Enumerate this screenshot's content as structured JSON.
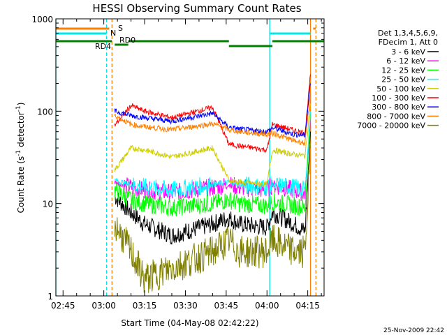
{
  "chart_data": {
    "type": "line",
    "title": "HESSI Observing Summary Count Rates",
    "xlabel": "Start Time (04-May-08 02:42:22)",
    "ylabel": "Count Rate (s⁻¹ detector⁻¹)",
    "ylabel_main": "Count Rate (s",
    "ylabel_sup1": "-1",
    "ylabel_mid": " detector",
    "ylabel_sup2": "-1",
    "ylabel_end": ")",
    "y_scale": "log",
    "ylim": [
      1,
      1000
    ],
    "xlim": [
      "02:42:22",
      "04:21"
    ],
    "x_ticks": [
      "02:45",
      "03:00",
      "03:15",
      "03:30",
      "03:45",
      "04:00",
      "04:15"
    ],
    "y_ticks": [
      "1",
      "10",
      "100",
      "1000"
    ],
    "grid": false,
    "legend_position": "right",
    "legend_header": [
      "Det 1,3,4,5,6,9,",
      "FDecim 1, Att 0"
    ],
    "timestamp": "25-Nov-2009 22:42",
    "state_flags": [
      {
        "label": "S",
        "color": "#ff8000"
      },
      {
        "label": "N",
        "color": "#00e8e8"
      },
      {
        "label": "RD4",
        "color": "#007f00"
      },
      {
        "label": "RD0",
        "color": "#007f00"
      }
    ],
    "series": [
      {
        "name": "3 - 6 keV",
        "color": "#000000",
        "x": [
          "03:04",
          "03:10",
          "03:15",
          "03:25",
          "03:40",
          "03:46",
          "03:50",
          "04:00",
          "04:02",
          "04:10",
          "04:14",
          "04:16"
        ],
        "values": [
          12,
          8,
          6,
          4.5,
          6,
          7,
          6,
          5.5,
          8,
          6,
          5,
          60
        ]
      },
      {
        "name": "6 - 12 keV",
        "color": "#ff00ff",
        "x": [
          "03:04",
          "03:10",
          "03:15",
          "03:25",
          "03:40",
          "03:46",
          "03:50",
          "04:00",
          "04:02",
          "04:10",
          "04:14",
          "04:16"
        ],
        "values": [
          17,
          15,
          14,
          13,
          15,
          16,
          15,
          14,
          16,
          14,
          13,
          80
        ]
      },
      {
        "name": "12 - 25 keV",
        "color": "#00ff00",
        "x": [
          "03:04",
          "03:10",
          "03:15",
          "03:25",
          "03:40",
          "03:46",
          "03:50",
          "04:00",
          "04:02",
          "04:10",
          "04:14",
          "04:16"
        ],
        "values": [
          14,
          11,
          10,
          9,
          10,
          11,
          10,
          9.5,
          10.5,
          9.5,
          9,
          90
        ]
      },
      {
        "name": "25 - 50 keV",
        "color": "#00ffff",
        "x": [
          "03:04",
          "03:10",
          "03:15",
          "03:25",
          "03:40",
          "03:46",
          "03:50",
          "04:00",
          "04:02",
          "04:10",
          "04:14",
          "04:16"
        ],
        "values": [
          18,
          16,
          15,
          14,
          16,
          17,
          16,
          15,
          16,
          15,
          14,
          100
        ]
      },
      {
        "name": "50 - 100 keV",
        "color": "#cccc00",
        "x": [
          "03:04",
          "03:10",
          "03:15",
          "03:25",
          "03:40",
          "03:46",
          "03:50",
          "04:00",
          "04:02",
          "04:10",
          "04:14",
          "04:16"
        ],
        "values": [
          23,
          40,
          38,
          32,
          40,
          18,
          17,
          16,
          38,
          34,
          33,
          120
        ]
      },
      {
        "name": "100 - 300 keV",
        "color": "#ff0000",
        "x": [
          "03:04",
          "03:10",
          "03:15",
          "03:25",
          "03:40",
          "03:46",
          "03:50",
          "04:00",
          "04:02",
          "04:10",
          "04:14",
          "04:16"
        ],
        "values": [
          70,
          115,
          100,
          85,
          110,
          44,
          42,
          38,
          72,
          62,
          58,
          250
        ]
      },
      {
        "name": "300 - 800 keV",
        "color": "#0000ff",
        "x": [
          "03:04",
          "03:10",
          "03:15",
          "03:25",
          "03:40",
          "03:46",
          "03:50",
          "04:00",
          "04:02",
          "04:10",
          "04:14",
          "04:16"
        ],
        "values": [
          100,
          90,
          85,
          78,
          95,
          67,
          64,
          60,
          66,
          56,
          55,
          200
        ]
      },
      {
        "name": "800 - 7000 keV",
        "color": "#ff8000",
        "x": [
          "03:04",
          "03:10",
          "03:15",
          "03:25",
          "03:40",
          "03:46",
          "03:50",
          "04:00",
          "04:02",
          "04:10",
          "04:14",
          "04:16"
        ],
        "values": [
          90,
          72,
          68,
          63,
          73,
          63,
          60,
          56,
          58,
          48,
          45,
          150
        ]
      },
      {
        "name": "7000 - 20000 keV",
        "color": "#7f7f00",
        "x": [
          "03:04",
          "03:10",
          "03:15",
          "03:25",
          "03:40",
          "03:46",
          "03:50",
          "04:00",
          "04:02",
          "04:10",
          "04:14",
          "04:16"
        ],
        "values": [
          6,
          3,
          1.5,
          2,
          3,
          4,
          3,
          3,
          4,
          3,
          3,
          40
        ]
      }
    ]
  }
}
